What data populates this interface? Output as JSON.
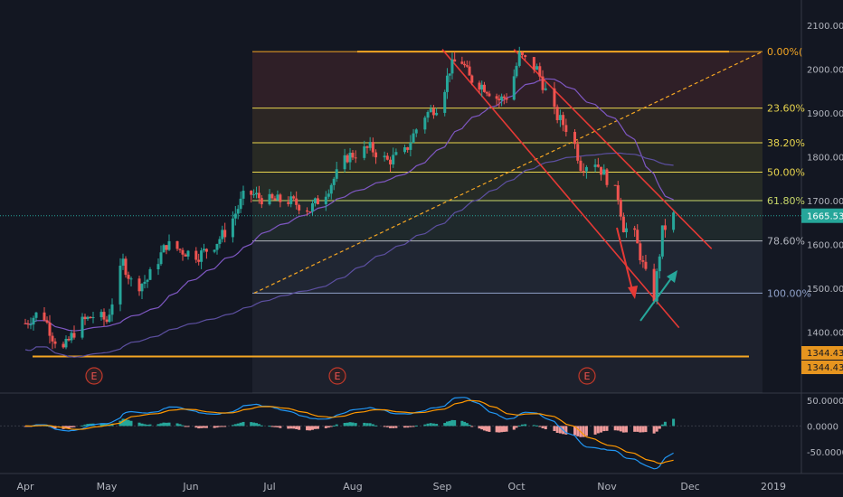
{
  "chart_data": {
    "type": "candlestick",
    "title": "",
    "price_axis": {
      "ticks": [
        "2100.00",
        "2000.00",
        "1900.00",
        "1800.00",
        "1700.00",
        "1600.00",
        "1500.00",
        "1400.00"
      ],
      "range": [
        1285,
        2120
      ],
      "current_price_label": "1665.53",
      "support_labels": [
        "1344.43",
        "1344.43"
      ]
    },
    "macd_axis": {
      "ticks": [
        "50.0000",
        "0.0000",
        "-50.0000"
      ],
      "range": [
        -85,
        55
      ]
    },
    "time_axis": {
      "labels": [
        "Apr",
        "May",
        "Jun",
        "Jul",
        "Aug",
        "Sep",
        "Oct",
        "Nov",
        "Dec",
        "2019"
      ]
    },
    "fibonacci": {
      "levels": [
        {
          "label": "0.00%(",
          "price": 2040,
          "color": "#f5a623"
        },
        {
          "label": "23.60%",
          "price": 1911,
          "color": "#e8d44d"
        },
        {
          "label": "38.20%",
          "price": 1832,
          "color": "#e8d44d"
        },
        {
          "label": "50.00%",
          "price": 1765,
          "color": "#e8d44d"
        },
        {
          "label": "61.80%",
          "price": 1700,
          "color": "#c8d86a"
        },
        {
          "label": "78.60%",
          "price": 1608,
          "color": "#b2b5be"
        },
        {
          "label": "100.00%",
          "price": 1489,
          "color": "#8fa0c8"
        }
      ]
    },
    "earnings_markers": [
      "E",
      "E",
      "E"
    ],
    "support_price": 1344.43,
    "resistance_price": 2040,
    "colors": {
      "up": "#26a69a",
      "down": "#ef5350",
      "ma_fast": "#7e57c2",
      "ma_slow": "#5c4fa0",
      "fib_line": "#f5a623",
      "macd": "#2196f3",
      "signal": "#ff9800",
      "arrow_down": "#e53935",
      "arrow_up": "#26a69a"
    },
    "grid": false,
    "legend": "none"
  }
}
